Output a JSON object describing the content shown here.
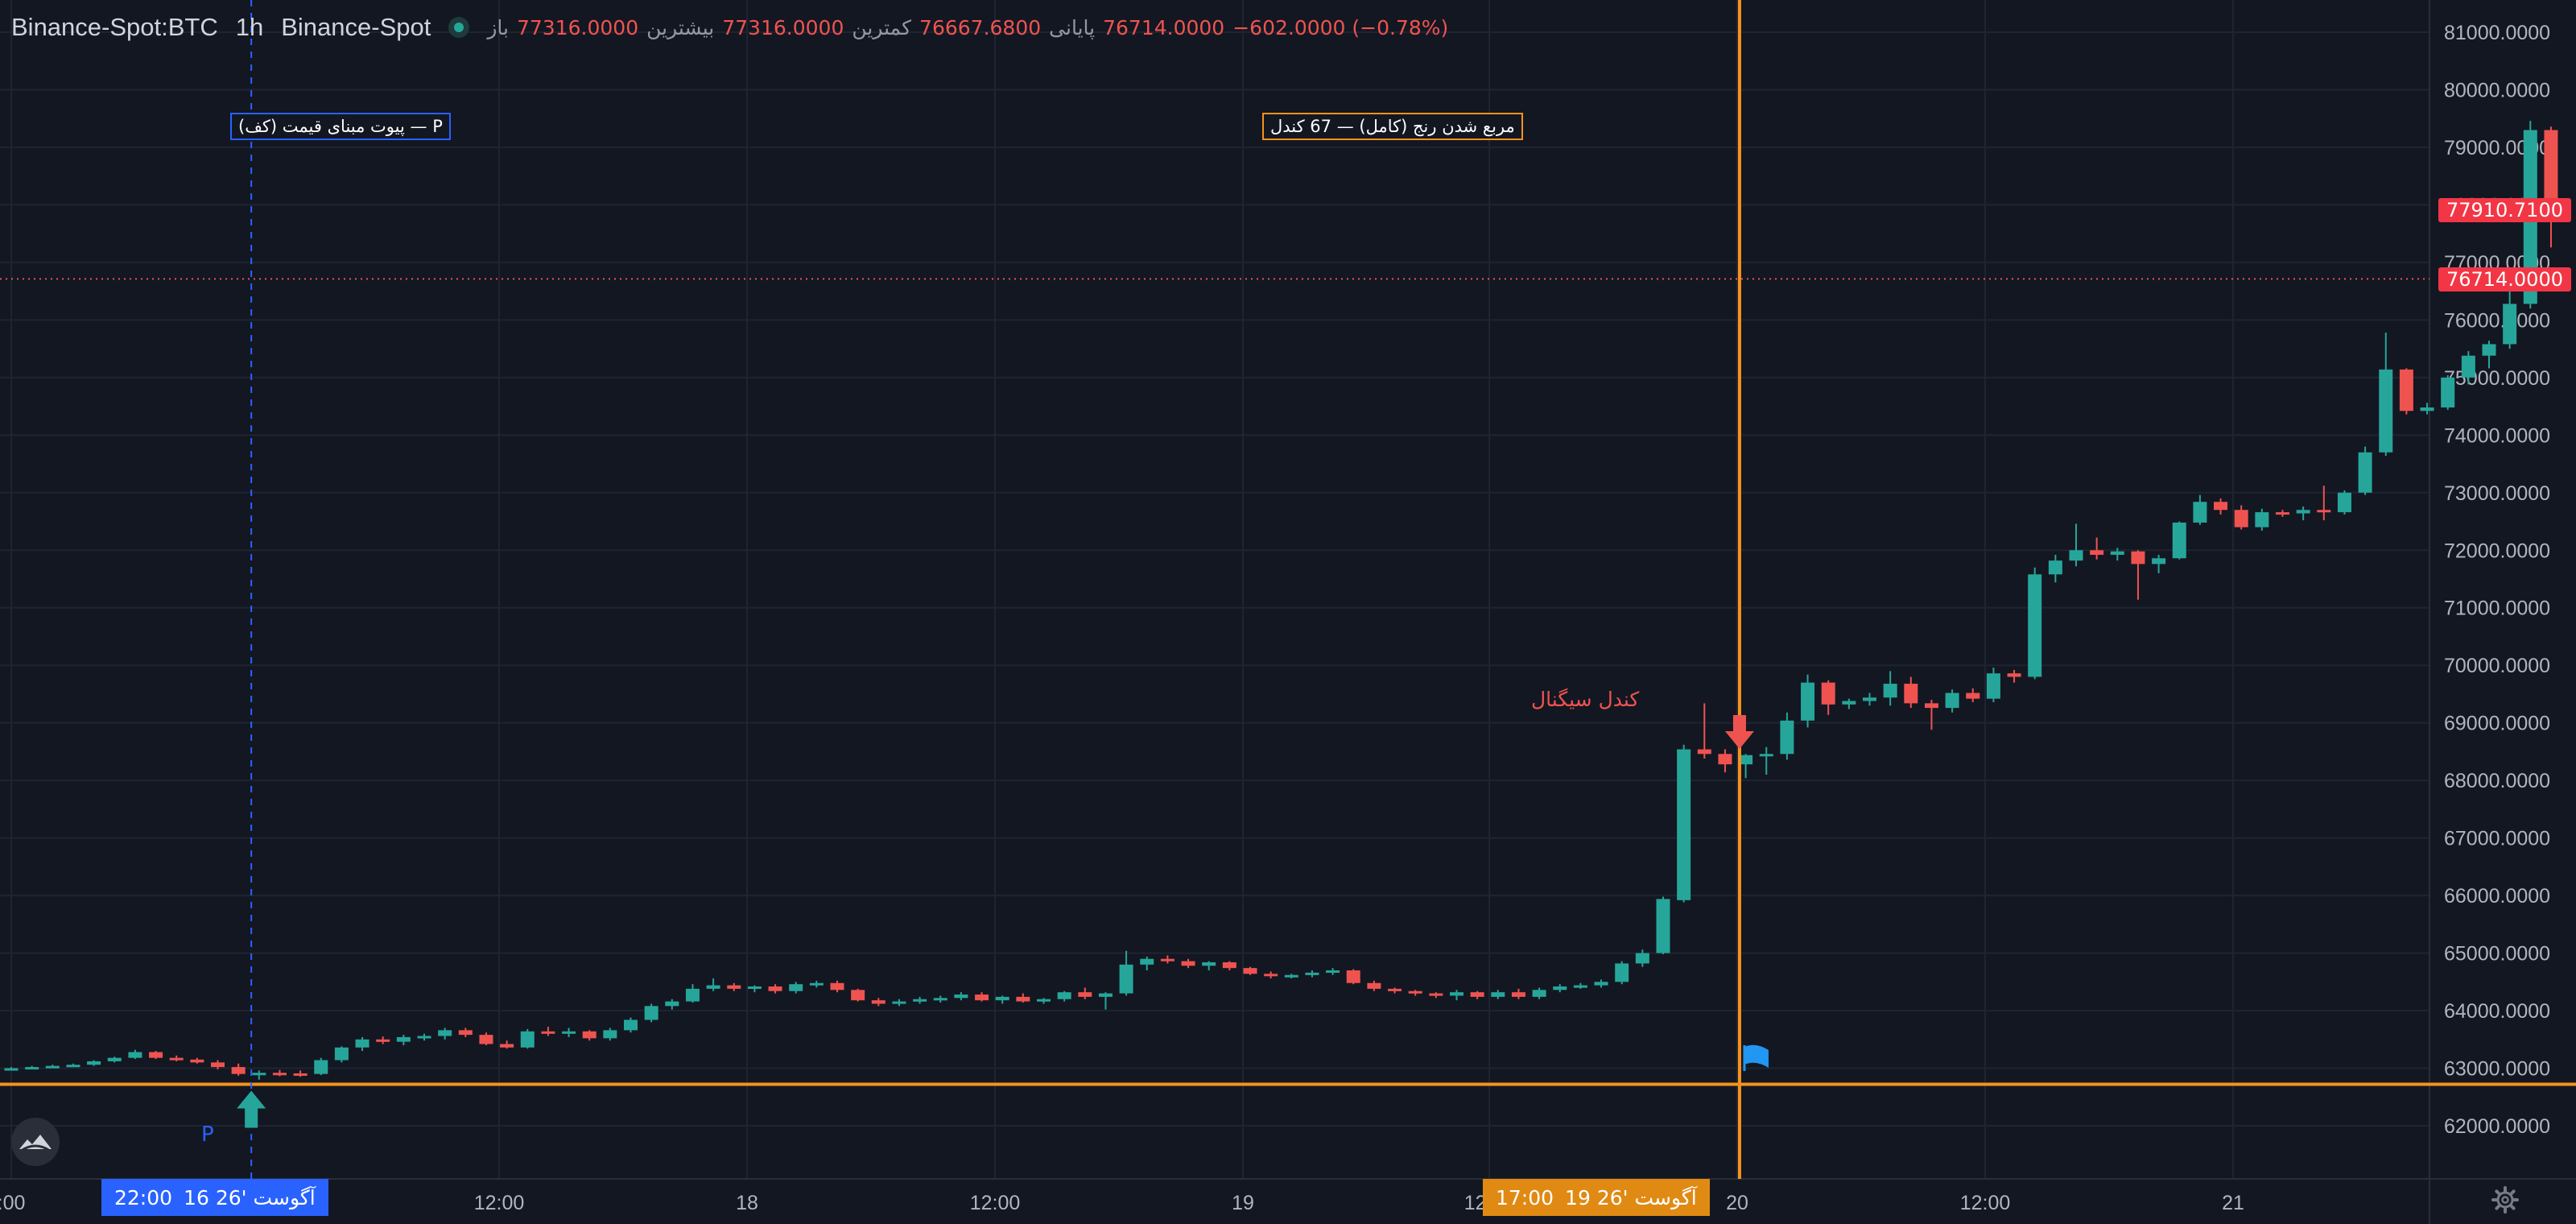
{
  "header": {
    "symbol": "Binance-Spot:BTC",
    "interval": "1h",
    "exchange": "Binance-Spot",
    "ohlc": [
      {
        "label": "باز",
        "value": "77316.0000"
      },
      {
        "label": "بیشترین",
        "value": "77316.0000"
      },
      {
        "label": "کمترین",
        "value": "76667.6800"
      },
      {
        "label": "پایانی",
        "value": "76714.0000"
      }
    ],
    "change": "−602.0000 (−0.78%)"
  },
  "annotations": {
    "pivot_label": "پیوت مبنای قیمت (کف) — P",
    "range_label": "مربع شدن رنج (کامل) — 67 کندل",
    "signal_label": "کندل سیگنال",
    "pivot_marker": "P"
  },
  "price_tags": {
    "current": "77910.7100",
    "last": "76714.0000"
  },
  "time_tags": {
    "pivot": {
      "time": "22:00",
      "date": "16 آگوست '26"
    },
    "signal": {
      "time": "17:00",
      "date": "19 آگوست '26"
    }
  },
  "colors": {
    "background": "#131722",
    "up": "#26a69a",
    "down": "#ef5350",
    "marker_line": "#f7931a",
    "pivot_line": "#2962ff",
    "tag_blue": "#2962ff",
    "tag_orange": "#e08a14",
    "price_tag": "#f23645"
  },
  "icons": [
    "status-dot-icon",
    "logo-icon",
    "settings-gear-icon",
    "flag-icon",
    "arrow-up-icon",
    "arrow-down-icon"
  ],
  "chart_data": {
    "type": "candlestick",
    "y_ticks": [
      "81000.0000",
      "80000.0000",
      "79000.0000",
      "78000.0000",
      "77000.0000",
      "76000.0000",
      "75000.0000",
      "74000.0000",
      "73000.0000",
      "72000.0000",
      "71000.0000",
      "70000.0000",
      "69000.0000",
      "68000.0000",
      "67000.0000",
      "66000.0000",
      "65000.0000",
      "64000.0000",
      "63000.0000",
      "62000.0000"
    ],
    "x_ticks": [
      ":00",
      "12:00",
      "18",
      "12:00",
      "19",
      "12:00",
      "20",
      "12:00",
      "21"
    ],
    "grid": true,
    "horizontal_level": 62720,
    "last_price_level": 76714,
    "candles": [
      [
        62980,
        63020,
        62960,
        63000
      ],
      [
        63000,
        63040,
        62980,
        63020
      ],
      [
        63020,
        63060,
        63000,
        63040
      ],
      [
        63040,
        63080,
        63020,
        63060
      ],
      [
        63060,
        63140,
        63040,
        63120
      ],
      [
        63120,
        63200,
        63100,
        63180
      ],
      [
        63180,
        63320,
        63160,
        63280
      ],
      [
        63280,
        63300,
        63160,
        63180
      ],
      [
        63180,
        63220,
        63120,
        63150
      ],
      [
        63150,
        63180,
        63080,
        63100
      ],
      [
        63100,
        63140,
        62980,
        63020
      ],
      [
        63020,
        63080,
        62870,
        62900
      ],
      [
        62900,
        62960,
        62800,
        62920
      ],
      [
        62920,
        62970,
        62860,
        62910
      ],
      [
        62910,
        62960,
        62850,
        62900
      ],
      [
        62900,
        63180,
        62880,
        63140
      ],
      [
        63140,
        63380,
        63100,
        63360
      ],
      [
        63360,
        63540,
        63300,
        63500
      ],
      [
        63500,
        63550,
        63420,
        63460
      ],
      [
        63460,
        63580,
        63400,
        63540
      ],
      [
        63540,
        63600,
        63480,
        63560
      ],
      [
        63560,
        63700,
        63500,
        63660
      ],
      [
        63660,
        63700,
        63540,
        63580
      ],
      [
        63580,
        63620,
        63400,
        63420
      ],
      [
        63420,
        63480,
        63340,
        63360
      ],
      [
        63360,
        63680,
        63340,
        63640
      ],
      [
        63640,
        63720,
        63560,
        63600
      ],
      [
        63600,
        63700,
        63540,
        63640
      ],
      [
        63640,
        63660,
        63480,
        63520
      ],
      [
        63520,
        63700,
        63480,
        63660
      ],
      [
        63660,
        63880,
        63620,
        63840
      ],
      [
        63840,
        64120,
        63800,
        64080
      ],
      [
        64080,
        64200,
        64020,
        64160
      ],
      [
        64160,
        64460,
        64140,
        64380
      ],
      [
        64380,
        64560,
        64340,
        64440
      ],
      [
        64440,
        64480,
        64340,
        64380
      ],
      [
        64380,
        64440,
        64320,
        64420
      ],
      [
        64420,
        64460,
        64300,
        64340
      ],
      [
        64340,
        64500,
        64300,
        64460
      ],
      [
        64460,
        64520,
        64400,
        64480
      ],
      [
        64480,
        64520,
        64320,
        64360
      ],
      [
        64360,
        64380,
        64160,
        64180
      ],
      [
        64180,
        64220,
        64080,
        64120
      ],
      [
        64120,
        64200,
        64080,
        64160
      ],
      [
        64160,
        64240,
        64120,
        64200
      ],
      [
        64200,
        64260,
        64140,
        64220
      ],
      [
        64220,
        64320,
        64180,
        64280
      ],
      [
        64280,
        64320,
        64160,
        64180
      ],
      [
        64180,
        64260,
        64120,
        64240
      ],
      [
        64240,
        64300,
        64140,
        64160
      ],
      [
        64160,
        64220,
        64120,
        64200
      ],
      [
        64200,
        64340,
        64160,
        64320
      ],
      [
        64320,
        64400,
        64200,
        64240
      ],
      [
        64240,
        64320,
        64020,
        64300
      ],
      [
        64300,
        65040,
        64260,
        64800
      ],
      [
        64800,
        64940,
        64700,
        64900
      ],
      [
        64900,
        64960,
        64820,
        64860
      ],
      [
        64860,
        64900,
        64740,
        64780
      ],
      [
        64780,
        64860,
        64700,
        64840
      ],
      [
        64840,
        64860,
        64700,
        64740
      ],
      [
        64740,
        64760,
        64620,
        64640
      ],
      [
        64640,
        64680,
        64560,
        64600
      ],
      [
        64600,
        64640,
        64560,
        64620
      ],
      [
        64620,
        64700,
        64580,
        64660
      ],
      [
        64660,
        64740,
        64620,
        64700
      ],
      [
        64700,
        64720,
        64460,
        64480
      ],
      [
        64480,
        64520,
        64340,
        64380
      ],
      [
        64380,
        64400,
        64300,
        64340
      ],
      [
        64340,
        64360,
        64260,
        64300
      ],
      [
        64300,
        64320,
        64220,
        64260
      ],
      [
        64260,
        64360,
        64180,
        64320
      ],
      [
        64320,
        64340,
        64200,
        64240
      ],
      [
        64240,
        64360,
        64200,
        64320
      ],
      [
        64320,
        64380,
        64200,
        64240
      ],
      [
        64240,
        64400,
        64200,
        64360
      ],
      [
        64360,
        64460,
        64320,
        64420
      ],
      [
        64420,
        64480,
        64380,
        64440
      ],
      [
        64440,
        64540,
        64400,
        64500
      ],
      [
        64500,
        64860,
        64460,
        64820
      ],
      [
        64820,
        65060,
        64760,
        65000
      ],
      [
        65000,
        65980,
        64980,
        65940
      ],
      [
        65920,
        68620,
        65880,
        68540
      ],
      [
        68540,
        69340,
        68380,
        68460
      ],
      [
        68460,
        68540,
        68140,
        68280
      ],
      [
        68280,
        68460,
        68040,
        68440
      ],
      [
        68440,
        68580,
        68100,
        68460
      ],
      [
        68460,
        69180,
        68360,
        69040
      ],
      [
        69040,
        69840,
        68920,
        69700
      ],
      [
        69700,
        69740,
        69140,
        69320
      ],
      [
        69320,
        69420,
        69240,
        69380
      ],
      [
        69380,
        69520,
        69300,
        69440
      ],
      [
        69440,
        69900,
        69300,
        69680
      ],
      [
        69680,
        69800,
        69260,
        69340
      ],
      [
        69340,
        69400,
        68880,
        69260
      ],
      [
        69260,
        69580,
        69180,
        69520
      ],
      [
        69520,
        69600,
        69360,
        69420
      ],
      [
        69420,
        69960,
        69360,
        69860
      ],
      [
        69860,
        69920,
        69700,
        69800
      ],
      [
        69800,
        71700,
        69760,
        71580
      ],
      [
        71580,
        71920,
        71440,
        71820
      ],
      [
        71820,
        72460,
        71720,
        72000
      ],
      [
        72000,
        72220,
        71840,
        71920
      ],
      [
        71920,
        72040,
        71820,
        71980
      ],
      [
        71980,
        72000,
        71140,
        71760
      ],
      [
        71760,
        71920,
        71600,
        71860
      ],
      [
        71860,
        72500,
        71840,
        72480
      ],
      [
        72480,
        72960,
        72440,
        72840
      ],
      [
        72840,
        72900,
        72620,
        72700
      ],
      [
        72700,
        72780,
        72360,
        72400
      ],
      [
        72400,
        72720,
        72340,
        72660
      ],
      [
        72660,
        72700,
        72580,
        72640
      ],
      [
        72640,
        72760,
        72520,
        72700
      ],
      [
        72700,
        73120,
        72520,
        72660
      ],
      [
        72660,
        73040,
        72620,
        73000
      ],
      [
        73000,
        73800,
        72960,
        73700
      ],
      [
        73700,
        75780,
        73640,
        75140
      ],
      [
        75140,
        75160,
        74360,
        74420
      ],
      [
        74420,
        74560,
        74360,
        74480
      ],
      [
        74480,
        75040,
        74440,
        75000
      ],
      [
        75000,
        75460,
        74880,
        75380
      ],
      [
        75380,
        75640,
        75160,
        75580
      ],
      [
        75580,
        76720,
        75500,
        76280
      ],
      [
        76280,
        79460,
        76200,
        79300
      ],
      [
        79300,
        79360,
        77260,
        77910
      ]
    ]
  }
}
